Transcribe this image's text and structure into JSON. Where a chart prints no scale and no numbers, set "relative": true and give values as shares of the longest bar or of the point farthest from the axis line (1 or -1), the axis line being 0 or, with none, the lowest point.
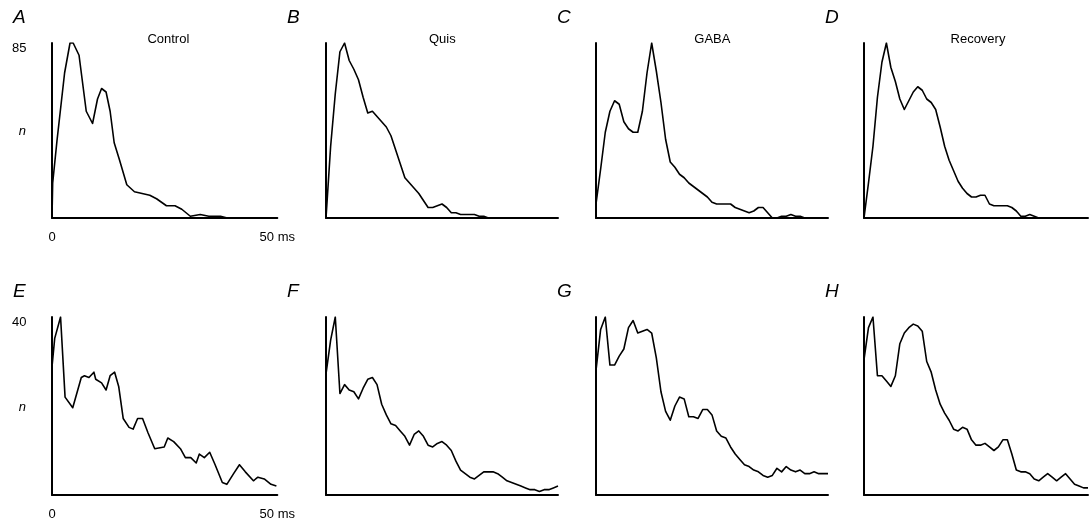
{
  "chart_data": [
    {
      "type": "line",
      "title": "A",
      "subtitle": "Control",
      "ylabel": "n",
      "annotations": [
        "85"
      ],
      "relative": true,
      "xlim": [
        0,
        50
      ],
      "xticks": [
        0,
        {
          "value": 50,
          "label": "50 ms"
        }
      ],
      "series": [
        {
          "color": "#000000",
          "x": [
            0,
            0.15,
            1.1,
            2.8,
            4,
            4.7,
            6,
            7.6,
            9,
            10.1,
            11,
            12,
            12.9,
            13.8,
            15,
            16.6,
            18.3,
            21.7,
            23.2,
            25.4,
            27.3,
            28.8,
            30.7,
            32.9,
            34.8,
            37.4,
            38.9,
            50
          ],
          "values": [
            0,
            0.2,
            0.44,
            0.83,
            1,
            1,
            0.93,
            0.61,
            0.54,
            0.68,
            0.74,
            0.72,
            0.61,
            0.43,
            0.33,
            0.19,
            0.15,
            0.13,
            0.11,
            0.07,
            0.07,
            0.05,
            0.01,
            0.02,
            0.01,
            0.01,
            0,
            0
          ]
        }
      ]
    },
    {
      "type": "line",
      "title": "B",
      "subtitle": "Quis",
      "relative": true,
      "categories": [
        null,
        null,
        null,
        null,
        null,
        null,
        null,
        null,
        null,
        null,
        null,
        null,
        null,
        null,
        null,
        null,
        null,
        null,
        null,
        null,
        null,
        null,
        null,
        null,
        null,
        null,
        null,
        null,
        null,
        null,
        null,
        null,
        null,
        null,
        null,
        null,
        null,
        null,
        null,
        null,
        null,
        null,
        null,
        null,
        null,
        null,
        null,
        null,
        null,
        null,
        null
      ],
      "series": [
        {
          "color": "#000000",
          "values": [
            0,
            0.41,
            0.71,
            0.95,
            1,
            0.9,
            0.85,
            0.79,
            0.69,
            0.6,
            0.61,
            0.58,
            0.55,
            0.52,
            0.47,
            0.39,
            0.31,
            0.23,
            0.2,
            0.17,
            0.14,
            0.1,
            0.06,
            0.06,
            0.07,
            0.08,
            0.06,
            0.03,
            0.03,
            0.02,
            0.02,
            0.02,
            0.02,
            0.01,
            0.01,
            0,
            0,
            0,
            0,
            0,
            0,
            0,
            0,
            0,
            0,
            0,
            0,
            0,
            0,
            0,
            0
          ]
        }
      ]
    },
    {
      "type": "line",
      "title": "C",
      "subtitle": "GABA",
      "relative": true,
      "categories": [
        null,
        null,
        null,
        null,
        null,
        null,
        null,
        null,
        null,
        null,
        null,
        null,
        null,
        null,
        null,
        null,
        null,
        null,
        null,
        null,
        null,
        null,
        null,
        null,
        null,
        null,
        null,
        null,
        null,
        null,
        null,
        null,
        null,
        null,
        null,
        null,
        null,
        null,
        null,
        null,
        null,
        null,
        null,
        null,
        null,
        null,
        null,
        null,
        null,
        null,
        null
      ],
      "series": [
        {
          "color": "#000000",
          "values": [
            0.08,
            0.28,
            0.49,
            0.61,
            0.67,
            0.65,
            0.55,
            0.51,
            0.49,
            0.49,
            0.61,
            0.83,
            1,
            0.84,
            0.66,
            0.45,
            0.32,
            0.29,
            0.25,
            0.23,
            0.2,
            0.18,
            0.16,
            0.14,
            0.12,
            0.09,
            0.08,
            0.08,
            0.08,
            0.08,
            0.06,
            0.05,
            0.04,
            0.03,
            0.04,
            0.06,
            0.06,
            0.03,
            0,
            0,
            0.01,
            0.01,
            0.02,
            0.01,
            0.01,
            0,
            0,
            0,
            0,
            0,
            0
          ]
        }
      ]
    },
    {
      "type": "line",
      "title": "D",
      "subtitle": "Recovery",
      "relative": true,
      "categories": [
        null,
        null,
        null,
        null,
        null,
        null,
        null,
        null,
        null,
        null,
        null,
        null,
        null,
        null,
        null,
        null,
        null,
        null,
        null,
        null,
        null,
        null,
        null,
        null,
        null,
        null,
        null,
        null,
        null,
        null,
        null,
        null,
        null,
        null,
        null,
        null,
        null,
        null,
        null,
        null,
        null,
        null,
        null,
        null,
        null,
        null,
        null,
        null,
        null,
        null,
        null
      ],
      "series": [
        {
          "color": "#000000",
          "values": [
            0,
            0.2,
            0.41,
            0.69,
            0.89,
            1,
            0.86,
            0.78,
            0.68,
            0.62,
            0.67,
            0.72,
            0.75,
            0.73,
            0.68,
            0.66,
            0.62,
            0.52,
            0.41,
            0.33,
            0.27,
            0.21,
            0.17,
            0.14,
            0.12,
            0.12,
            0.13,
            0.13,
            0.08,
            0.07,
            0.07,
            0.07,
            0.07,
            0.06,
            0.04,
            0.01,
            0.01,
            0.02,
            0.01,
            0,
            0,
            0,
            0,
            0,
            0,
            0,
            0,
            0,
            0,
            0,
            0
          ]
        }
      ]
    },
    {
      "type": "line",
      "title": "E",
      "ylabel": "n",
      "annotations": [
        "40"
      ],
      "relative": true,
      "xlim": [
        0,
        50
      ],
      "xticks": [
        0,
        {
          "value": 50,
          "label": "50 ms"
        }
      ],
      "series": [
        {
          "color": "#000000",
          "x": [
            0,
            0.6,
            1.9,
            2.9,
            4.6,
            6.5,
            7.2,
            8.2,
            9.3,
            9.7,
            11,
            12,
            12.9,
            13.9,
            14.8,
            15.8,
            17.1,
            18,
            19,
            20.1,
            21.3,
            22.8,
            24.9,
            25.7,
            27,
            28.5,
            29.6,
            30.8,
            32,
            32.7,
            33.8,
            35,
            36.2,
            37.8,
            38.8,
            40.3,
            41.6,
            42.9,
            44.7,
            45.7,
            47.1,
            48.6,
            49.8
          ],
          "values": [
            0.72,
            0.88,
            1,
            0.55,
            0.49,
            0.66,
            0.67,
            0.66,
            0.69,
            0.65,
            0.63,
            0.59,
            0.67,
            0.69,
            0.61,
            0.43,
            0.38,
            0.37,
            0.43,
            0.43,
            0.35,
            0.26,
            0.27,
            0.32,
            0.3,
            0.26,
            0.21,
            0.21,
            0.18,
            0.23,
            0.21,
            0.24,
            0.17,
            0.07,
            0.06,
            0.12,
            0.17,
            0.13,
            0.08,
            0.1,
            0.09,
            0.06,
            0.05
          ]
        }
      ]
    },
    {
      "type": "line",
      "title": "F",
      "relative": true,
      "categories": [
        null,
        null,
        null,
        null,
        null,
        null,
        null,
        null,
        null,
        null,
        null,
        null,
        null,
        null,
        null,
        null,
        null,
        null,
        null,
        null,
        null,
        null,
        null,
        null,
        null,
        null,
        null,
        null,
        null,
        null,
        null,
        null,
        null,
        null,
        null,
        null,
        null,
        null,
        null,
        null,
        null,
        null,
        null,
        null,
        null,
        null,
        null,
        null,
        null,
        null,
        null
      ],
      "series": [
        {
          "color": "#000000",
          "values": [
            0.68,
            0.87,
            1,
            0.57,
            0.62,
            0.59,
            0.58,
            0.54,
            0.6,
            0.65,
            0.66,
            0.62,
            0.51,
            0.45,
            0.4,
            0.39,
            0.36,
            0.33,
            0.28,
            0.34,
            0.36,
            0.33,
            0.28,
            0.27,
            0.29,
            0.3,
            0.28,
            0.25,
            0.19,
            0.14,
            0.12,
            0.1,
            0.09,
            0.11,
            0.13,
            0.13,
            0.13,
            0.12,
            0.1,
            0.08,
            0.07,
            0.06,
            0.05,
            0.04,
            0.03,
            0.03,
            0.02,
            0.03,
            0.03,
            0.04,
            0.05
          ]
        }
      ]
    },
    {
      "type": "line",
      "title": "G",
      "relative": true,
      "categories": [
        null,
        null,
        null,
        null,
        null,
        null,
        null,
        null,
        null,
        null,
        null,
        null,
        null,
        null,
        null,
        null,
        null,
        null,
        null,
        null,
        null,
        null,
        null,
        null,
        null,
        null,
        null,
        null,
        null,
        null,
        null,
        null,
        null,
        null,
        null,
        null,
        null,
        null,
        null,
        null,
        null,
        null,
        null,
        null,
        null,
        null,
        null,
        null,
        null,
        null,
        null
      ],
      "series": [
        {
          "color": "#000000",
          "values": [
            0.7,
            0.93,
            1,
            0.73,
            0.73,
            0.78,
            0.82,
            0.94,
            0.98,
            0.91,
            0.92,
            0.93,
            0.91,
            0.77,
            0.58,
            0.47,
            0.42,
            0.5,
            0.55,
            0.54,
            0.44,
            0.44,
            0.43,
            0.48,
            0.48,
            0.45,
            0.36,
            0.33,
            0.32,
            0.27,
            0.23,
            0.2,
            0.17,
            0.16,
            0.14,
            0.13,
            0.11,
            0.1,
            0.11,
            0.15,
            0.13,
            0.16,
            0.14,
            0.13,
            0.14,
            0.12,
            0.12,
            0.13,
            0.12,
            0.12,
            0.12
          ]
        }
      ]
    },
    {
      "type": "line",
      "title": "H",
      "relative": true,
      "categories": [
        null,
        null,
        null,
        null,
        null,
        null,
        null,
        null,
        null,
        null,
        null,
        null,
        null,
        null,
        null,
        null,
        null,
        null,
        null,
        null,
        null,
        null,
        null,
        null,
        null,
        null,
        null,
        null,
        null,
        null,
        null,
        null,
        null,
        null,
        null,
        null,
        null,
        null,
        null,
        null,
        null,
        null,
        null,
        null,
        null,
        null,
        null,
        null,
        null,
        null,
        null
      ],
      "series": [
        {
          "color": "#000000",
          "values": [
            0.76,
            0.94,
            1,
            0.67,
            0.67,
            0.64,
            0.61,
            0.67,
            0.85,
            0.91,
            0.94,
            0.96,
            0.95,
            0.92,
            0.75,
            0.69,
            0.59,
            0.51,
            0.46,
            0.42,
            0.37,
            0.36,
            0.38,
            0.37,
            0.31,
            0.28,
            0.28,
            0.29,
            0.27,
            0.25,
            0.27,
            0.31,
            0.31,
            0.23,
            0.14,
            0.13,
            0.13,
            0.12,
            0.09,
            0.08,
            0.1,
            0.12,
            0.1,
            0.08,
            0.1,
            0.12,
            0.09,
            0.06,
            0.05,
            0.04,
            0.04
          ]
        }
      ]
    }
  ]
}
